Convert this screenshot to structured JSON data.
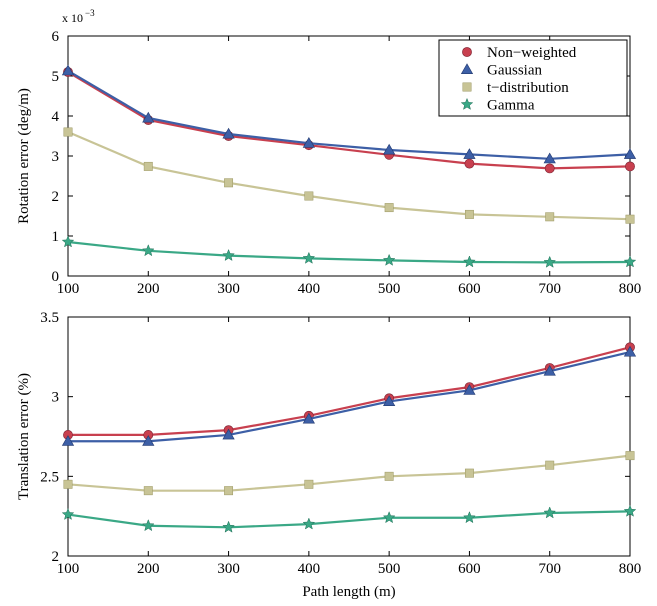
{
  "chart_data": [
    {
      "type": "line",
      "title": "",
      "xlabel": "",
      "ylabel": "Rotation error (deg/m)",
      "y_scale_note": "x 10",
      "y_scale_exponent": "−3",
      "x": [
        100,
        200,
        300,
        400,
        500,
        600,
        700,
        800
      ],
      "xlim": [
        100,
        800
      ],
      "ylim": [
        0,
        6
      ],
      "yticks": [
        0,
        1,
        2,
        3,
        4,
        5,
        6
      ],
      "legend_position": "top-right",
      "grid": false,
      "series": [
        {
          "name": "Non−weighted",
          "color": "#c8404f",
          "marker": "circle",
          "values": [
            5.1,
            3.9,
            3.5,
            3.27,
            3.03,
            2.81,
            2.69,
            2.74
          ]
        },
        {
          "name": "Gaussian",
          "color": "#3d5fa6",
          "marker": "triangle",
          "values": [
            5.13,
            3.95,
            3.55,
            3.32,
            3.15,
            3.04,
            2.93,
            3.04
          ]
        },
        {
          "name": "t−distribution",
          "color": "#c8c496",
          "marker": "square",
          "values": [
            3.6,
            2.74,
            2.33,
            2.0,
            1.71,
            1.54,
            1.48,
            1.42
          ]
        },
        {
          "name": "Gamma",
          "color": "#3aa886",
          "marker": "star",
          "values": [
            0.85,
            0.63,
            0.51,
            0.44,
            0.39,
            0.35,
            0.34,
            0.35
          ]
        }
      ]
    },
    {
      "type": "line",
      "title": "",
      "xlabel": "Path length (m)",
      "ylabel": "Translation error (%)",
      "x": [
        100,
        200,
        300,
        400,
        500,
        600,
        700,
        800
      ],
      "xlim": [
        100,
        800
      ],
      "ylim": [
        2,
        3.5
      ],
      "yticks": [
        2,
        2.5,
        3,
        3.5
      ],
      "grid": false,
      "series": [
        {
          "name": "Non−weighted",
          "color": "#c8404f",
          "marker": "circle",
          "values": [
            2.76,
            2.76,
            2.79,
            2.88,
            2.99,
            3.06,
            3.18,
            3.31
          ]
        },
        {
          "name": "Gaussian",
          "color": "#3d5fa6",
          "marker": "triangle",
          "values": [
            2.72,
            2.72,
            2.76,
            2.86,
            2.97,
            3.04,
            3.16,
            3.28
          ]
        },
        {
          "name": "t−distribution",
          "color": "#c8c496",
          "marker": "square",
          "values": [
            2.45,
            2.41,
            2.41,
            2.45,
            2.5,
            2.52,
            2.57,
            2.63
          ]
        },
        {
          "name": "Gamma",
          "color": "#3aa886",
          "marker": "star",
          "values": [
            2.26,
            2.19,
            2.18,
            2.2,
            2.24,
            2.24,
            2.27,
            2.28
          ]
        }
      ]
    }
  ]
}
